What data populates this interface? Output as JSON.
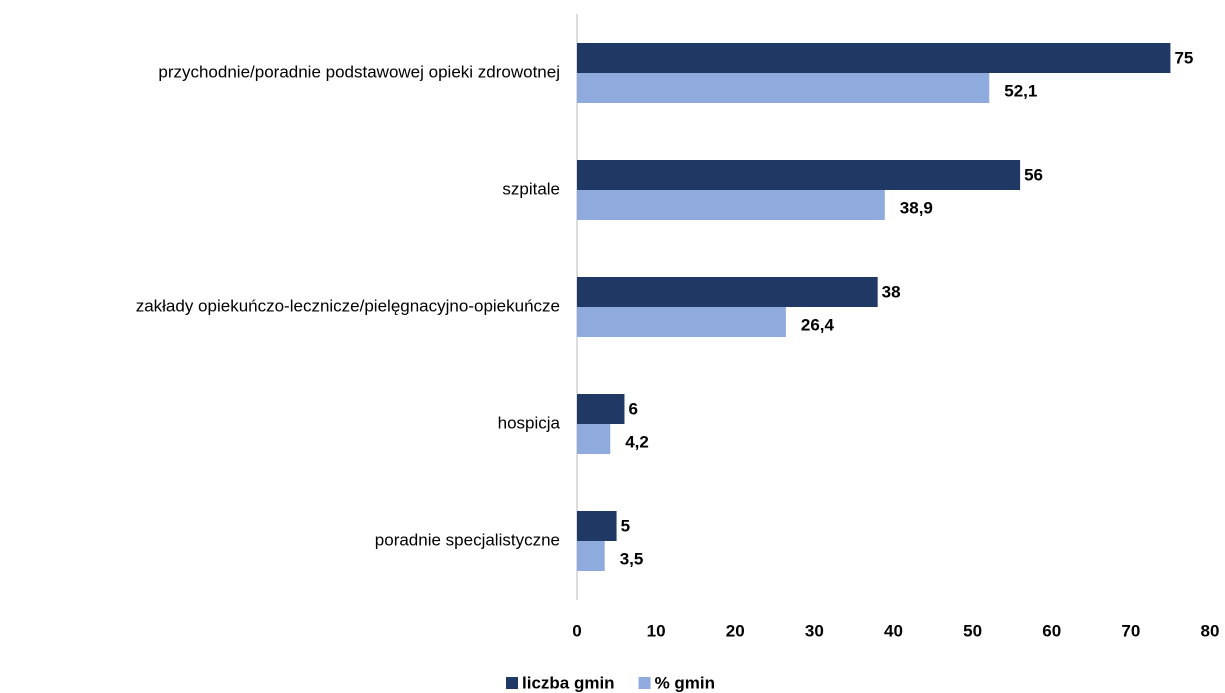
{
  "chart_data": {
    "type": "bar",
    "orientation": "horizontal",
    "categories": [
      "przychodnie/poradnie podstawowej opieki zdrowotnej",
      "szpitale",
      "zakłady opiekuńczo-lecznicze/pielęgnacyjno-opiekuńcze",
      "hospicja",
      "poradnie specjalistyczne"
    ],
    "series": [
      {
        "name": "liczba gmin",
        "color": "#203864",
        "values": [
          75,
          56,
          38,
          6,
          5
        ]
      },
      {
        "name": "% gmin",
        "color": "#8faadc",
        "values": [
          52.1,
          38.9,
          26.4,
          4.2,
          3.5
        ],
        "value_labels": [
          "52,1",
          "38,9",
          "26,4",
          "4,2",
          "3,5"
        ]
      }
    ],
    "xlim": [
      0,
      80
    ],
    "xticks": [
      0,
      10,
      20,
      30,
      40,
      50,
      60,
      70,
      80
    ],
    "grid": false,
    "legend": "bottom"
  }
}
